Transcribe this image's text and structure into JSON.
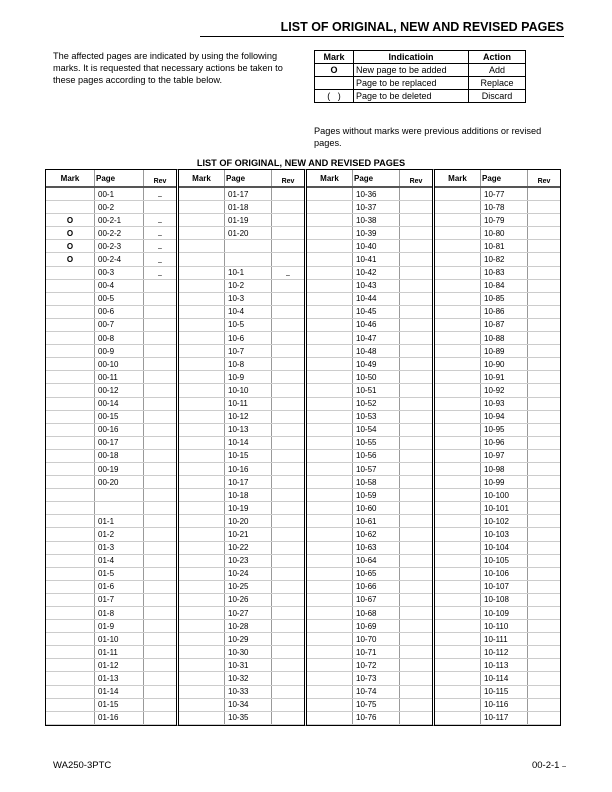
{
  "header": {
    "title": "LIST OF ORIGINAL, NEW AND REVISED PAGES"
  },
  "intro": "The affected pages are indicated by using the following marks. It is requested that necessary actions be taken to these pages according to the table below.",
  "legend": {
    "headers": [
      "Mark",
      "Indicatioin",
      "Action"
    ],
    "rows": [
      [
        "O",
        "New page to be added",
        "Add"
      ],
      [
        "",
        "Page to be replaced",
        "Replace"
      ],
      [
        "(   )",
        "Page to be deleted",
        "Discard"
      ]
    ]
  },
  "note": "Pages without marks were previous additions or revised pages.",
  "table": {
    "title": "LIST OF ORIGINAL, NEW AND REVISED PAGES",
    "headers": [
      "Mark",
      "Page",
      "Rev"
    ],
    "groups": [
      [
        [
          "",
          "00-1",
          "–"
        ],
        [
          "",
          "00-2",
          ""
        ],
        [
          "O",
          "00-2-1",
          "–"
        ],
        [
          "O",
          "00-2-2",
          "–"
        ],
        [
          "O",
          "00-2-3",
          "–"
        ],
        [
          "O",
          "00-2-4",
          "–"
        ],
        [
          "",
          "00-3",
          "–"
        ],
        [
          "",
          "00-4",
          ""
        ],
        [
          "",
          "00-5",
          ""
        ],
        [
          "",
          "00-6",
          ""
        ],
        [
          "",
          "00-7",
          ""
        ],
        [
          "",
          "00-8",
          ""
        ],
        [
          "",
          "00-9",
          ""
        ],
        [
          "",
          "00-10",
          ""
        ],
        [
          "",
          "00-11",
          ""
        ],
        [
          "",
          "00-12",
          ""
        ],
        [
          "",
          "00-14",
          ""
        ],
        [
          "",
          "00-15",
          ""
        ],
        [
          "",
          "00-16",
          ""
        ],
        [
          "",
          "00-17",
          ""
        ],
        [
          "",
          "00-18",
          ""
        ],
        [
          "",
          "00-19",
          ""
        ],
        [
          "",
          "00-20",
          ""
        ],
        [
          "",
          "",
          ""
        ],
        [
          "",
          "",
          ""
        ],
        [
          "",
          "01-1",
          ""
        ],
        [
          "",
          "01-2",
          ""
        ],
        [
          "",
          "01-3",
          ""
        ],
        [
          "",
          "01-4",
          ""
        ],
        [
          "",
          "01-5",
          ""
        ],
        [
          "",
          "01-6",
          ""
        ],
        [
          "",
          "01-7",
          ""
        ],
        [
          "",
          "01-8",
          ""
        ],
        [
          "",
          "01-9",
          ""
        ],
        [
          "",
          "01-10",
          ""
        ],
        [
          "",
          "01-11",
          ""
        ],
        [
          "",
          "01-12",
          ""
        ],
        [
          "",
          "01-13",
          ""
        ],
        [
          "",
          "01-14",
          ""
        ],
        [
          "",
          "01-15",
          ""
        ],
        [
          "",
          "01-16",
          ""
        ]
      ],
      [
        [
          "",
          "01-17",
          ""
        ],
        [
          "",
          "01-18",
          ""
        ],
        [
          "",
          "01-19",
          ""
        ],
        [
          "",
          "01-20",
          ""
        ],
        [
          "",
          "",
          ""
        ],
        [
          "",
          "",
          ""
        ],
        [
          "",
          "10-1",
          "–"
        ],
        [
          "",
          "10-2",
          ""
        ],
        [
          "",
          "10-3",
          ""
        ],
        [
          "",
          "10-4",
          ""
        ],
        [
          "",
          "10-5",
          ""
        ],
        [
          "",
          "10-6",
          ""
        ],
        [
          "",
          "10-7",
          ""
        ],
        [
          "",
          "10-8",
          ""
        ],
        [
          "",
          "10-9",
          ""
        ],
        [
          "",
          "10-10",
          ""
        ],
        [
          "",
          "10-11",
          ""
        ],
        [
          "",
          "10-12",
          ""
        ],
        [
          "",
          "10-13",
          ""
        ],
        [
          "",
          "10-14",
          ""
        ],
        [
          "",
          "10-15",
          ""
        ],
        [
          "",
          "10-16",
          ""
        ],
        [
          "",
          "10-17",
          ""
        ],
        [
          "",
          "10-18",
          ""
        ],
        [
          "",
          "10-19",
          ""
        ],
        [
          "",
          "10-20",
          ""
        ],
        [
          "",
          "10-21",
          ""
        ],
        [
          "",
          "10-22",
          ""
        ],
        [
          "",
          "10-23",
          ""
        ],
        [
          "",
          "10-24",
          ""
        ],
        [
          "",
          "10-25",
          ""
        ],
        [
          "",
          "10-26",
          ""
        ],
        [
          "",
          "10-27",
          ""
        ],
        [
          "",
          "10-28",
          ""
        ],
        [
          "",
          "10-29",
          ""
        ],
        [
          "",
          "10-30",
          ""
        ],
        [
          "",
          "10-31",
          ""
        ],
        [
          "",
          "10-32",
          ""
        ],
        [
          "",
          "10-33",
          ""
        ],
        [
          "",
          "10-34",
          ""
        ],
        [
          "",
          "10-35",
          ""
        ]
      ],
      [
        [
          "",
          "10-36",
          ""
        ],
        [
          "",
          "10-37",
          ""
        ],
        [
          "",
          "10-38",
          ""
        ],
        [
          "",
          "10-39",
          ""
        ],
        [
          "",
          "10-40",
          ""
        ],
        [
          "",
          "10-41",
          ""
        ],
        [
          "",
          "10-42",
          ""
        ],
        [
          "",
          "10-43",
          ""
        ],
        [
          "",
          "10-44",
          ""
        ],
        [
          "",
          "10-45",
          ""
        ],
        [
          "",
          "10-46",
          ""
        ],
        [
          "",
          "10-47",
          ""
        ],
        [
          "",
          "10-48",
          ""
        ],
        [
          "",
          "10-49",
          ""
        ],
        [
          "",
          "10-50",
          ""
        ],
        [
          "",
          "10-51",
          ""
        ],
        [
          "",
          "10-52",
          ""
        ],
        [
          "",
          "10-53",
          ""
        ],
        [
          "",
          "10-54",
          ""
        ],
        [
          "",
          "10-55",
          ""
        ],
        [
          "",
          "10-56",
          ""
        ],
        [
          "",
          "10-57",
          ""
        ],
        [
          "",
          "10-58",
          ""
        ],
        [
          "",
          "10-59",
          ""
        ],
        [
          "",
          "10-60",
          ""
        ],
        [
          "",
          "10-61",
          ""
        ],
        [
          "",
          "10-62",
          ""
        ],
        [
          "",
          "10-63",
          ""
        ],
        [
          "",
          "10-64",
          ""
        ],
        [
          "",
          "10-65",
          ""
        ],
        [
          "",
          "10-66",
          ""
        ],
        [
          "",
          "10-67",
          ""
        ],
        [
          "",
          "10-68",
          ""
        ],
        [
          "",
          "10-69",
          ""
        ],
        [
          "",
          "10-70",
          ""
        ],
        [
          "",
          "10-71",
          ""
        ],
        [
          "",
          "10-72",
          ""
        ],
        [
          "",
          "10-73",
          ""
        ],
        [
          "",
          "10-74",
          ""
        ],
        [
          "",
          "10-75",
          ""
        ],
        [
          "",
          "10-76",
          ""
        ]
      ],
      [
        [
          "",
          "10-77",
          ""
        ],
        [
          "",
          "10-78",
          ""
        ],
        [
          "",
          "10-79",
          ""
        ],
        [
          "",
          "10-80",
          ""
        ],
        [
          "",
          "10-81",
          ""
        ],
        [
          "",
          "10-82",
          ""
        ],
        [
          "",
          "10-83",
          ""
        ],
        [
          "",
          "10-84",
          ""
        ],
        [
          "",
          "10-85",
          ""
        ],
        [
          "",
          "10-86",
          ""
        ],
        [
          "",
          "10-87",
          ""
        ],
        [
          "",
          "10-88",
          ""
        ],
        [
          "",
          "10-89",
          ""
        ],
        [
          "",
          "10-90",
          ""
        ],
        [
          "",
          "10-91",
          ""
        ],
        [
          "",
          "10-92",
          ""
        ],
        [
          "",
          "10-93",
          ""
        ],
        [
          "",
          "10-94",
          ""
        ],
        [
          "",
          "10-95",
          ""
        ],
        [
          "",
          "10-96",
          ""
        ],
        [
          "",
          "10-97",
          ""
        ],
        [
          "",
          "10-98",
          ""
        ],
        [
          "",
          "10-99",
          ""
        ],
        [
          "",
          "10-100",
          ""
        ],
        [
          "",
          "10-101",
          ""
        ],
        [
          "",
          "10-102",
          ""
        ],
        [
          "",
          "10-103",
          ""
        ],
        [
          "",
          "10-104",
          ""
        ],
        [
          "",
          "10-105",
          ""
        ],
        [
          "",
          "10-106",
          ""
        ],
        [
          "",
          "10-107",
          ""
        ],
        [
          "",
          "10-108",
          ""
        ],
        [
          "",
          "10-109",
          ""
        ],
        [
          "",
          "10-110",
          ""
        ],
        [
          "",
          "10-111",
          ""
        ],
        [
          "",
          "10-112",
          ""
        ],
        [
          "",
          "10-113",
          ""
        ],
        [
          "",
          "10-114",
          ""
        ],
        [
          "",
          "10-115",
          ""
        ],
        [
          "",
          "10-116",
          ""
        ],
        [
          "",
          "10-117",
          ""
        ]
      ]
    ]
  },
  "footer": {
    "model": "WA250-3PTC",
    "page": "00-2-1",
    "rev": "–"
  }
}
